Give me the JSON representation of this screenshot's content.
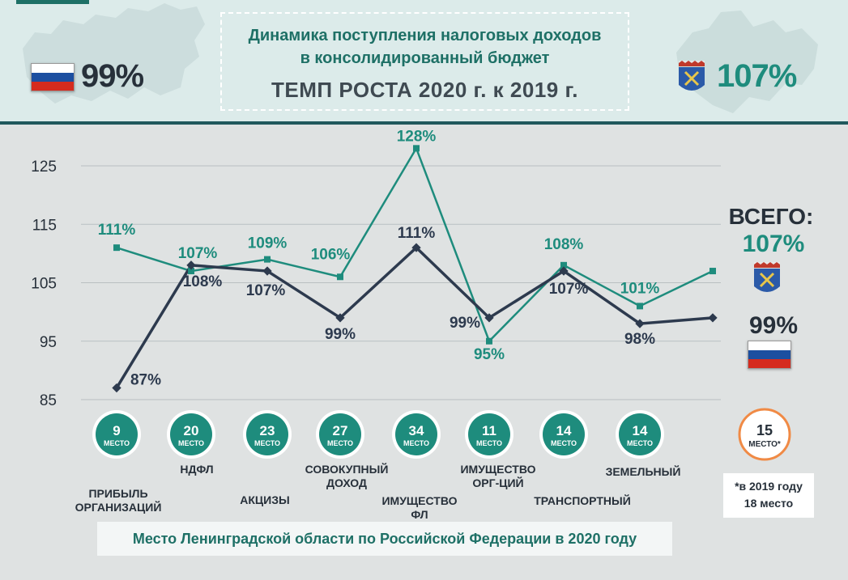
{
  "header": {
    "title_line1": "Динамика поступления налоговых доходов",
    "title_line2": "в консолидированный бюджет",
    "title_line3": "ТЕМП РОСТА 2020 г. к 2019 г.",
    "russia_pct": "99%",
    "region_pct": "107%"
  },
  "colors": {
    "teal": "#1e8c7d",
    "dark": "#2d3a4e",
    "circle_fill": "#1e8c7d",
    "total_circle_border": "#f08a45"
  },
  "chart_data": {
    "type": "line",
    "categories": [
      "ПРИБЫЛЬ ОРГАНИЗАЦИЙ",
      "НДФЛ",
      "АКЦИЗЫ",
      "СОВОКУПНЫЙ ДОХОД",
      "ИМУЩЕСТВО ФЛ",
      "ИМУЩЕСТВО ОРГ-ЦИЙ",
      "ТРАНСПОРТНЫЙ",
      "ЗЕМЕЛЬНЫЙ",
      "ВСЕГО"
    ],
    "yticks": [
      "125",
      "115",
      "105",
      "95",
      "85"
    ],
    "ylim": [
      85,
      125
    ],
    "series": [
      {
        "key": "region",
        "color": "#1e8c7d",
        "values": [
          111,
          107,
          109,
          106,
          128,
          95,
          108,
          101,
          107
        ],
        "labels": [
          "111%",
          "107%",
          "109%",
          "106%",
          "128%",
          "95%",
          "108%",
          "101%",
          ""
        ]
      },
      {
        "key": "russia",
        "color": "#2d3a4e",
        "values": [
          87,
          108,
          107,
          99,
          111,
          99,
          107,
          98,
          99
        ],
        "labels": [
          "87%",
          "108%",
          "107%",
          "99%",
          "111%",
          "99%",
          "107%",
          "98%",
          ""
        ]
      }
    ],
    "grid": true
  },
  "places": [
    {
      "num": "9",
      "word": "МЕСТО"
    },
    {
      "num": "20",
      "word": "МЕСТО"
    },
    {
      "num": "23",
      "word": "МЕСТО"
    },
    {
      "num": "27",
      "word": "МЕСТО"
    },
    {
      "num": "34",
      "word": "МЕСТО"
    },
    {
      "num": "11",
      "word": "МЕСТО"
    },
    {
      "num": "14",
      "word": "МЕСТО"
    },
    {
      "num": "14",
      "word": "МЕСТО"
    }
  ],
  "total_place": {
    "num": "15",
    "word": "МЕСТО*"
  },
  "categories_labels": {
    "c0_l1": "ПРИБЫЛЬ",
    "c0_l2": "ОРГАНИЗАЦИЙ",
    "c1": "НДФЛ",
    "c2": "АКЦИЗЫ",
    "c3_l1": "СОВОКУПНЫЙ",
    "c3_l2": "ДОХОД",
    "c4_l1": "ИМУЩЕСТВО",
    "c4_l2": "ФЛ",
    "c5_l1": "ИМУЩЕСТВО",
    "c5_l2": "ОРГ-ЦИЙ",
    "c6": "ТРАНСПОРТНЫЙ",
    "c7": "ЗЕМЕЛЬНЫЙ"
  },
  "total": {
    "label": "ВСЕГО:",
    "region": "107%",
    "russia": "99%"
  },
  "note": {
    "line1": "*в 2019 году",
    "line2": "18 место"
  },
  "footer": "Место Ленинградской области по Российской Федерации в 2020 году"
}
